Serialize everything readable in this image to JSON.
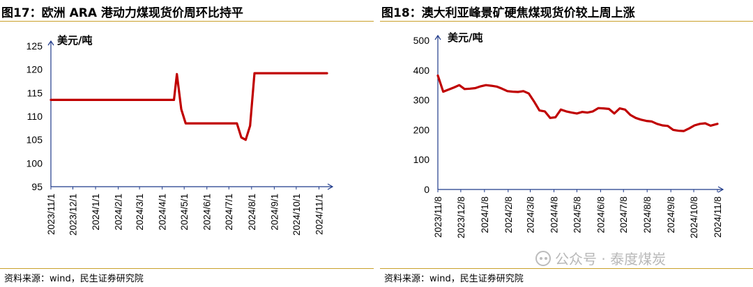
{
  "charts": [
    {
      "title": "图17：欧洲 ARA 港动力煤现货价周环比持平",
      "source": "资料来源：wind，民生证券研究院",
      "chart_data": {
        "type": "line",
        "title": "欧洲 ARA 港动力煤现货价周环比持平",
        "ylabel": "美元/吨",
        "ylim": [
          95,
          125
        ],
        "yticks": [
          95,
          100,
          105,
          110,
          115,
          120,
          125
        ],
        "xlim": [
          "2023-11-01",
          "2024-11-12"
        ],
        "x_tick_labels": [
          "2023/11/1",
          "2023/12/1",
          "2024/1/1",
          "2024/2/1",
          "2024/3/1",
          "2024/4/1",
          "2024/5/1",
          "2024/6/1",
          "2024/7/1",
          "2024/8/1",
          "2024/9/1",
          "2024/10/1",
          "2024/11/1"
        ],
        "x_tick_dates": [
          "2023-11-01",
          "2023-12-01",
          "2024-01-01",
          "2024-02-01",
          "2024-03-01",
          "2024-04-01",
          "2024-05-01",
          "2024-06-01",
          "2024-07-01",
          "2024-08-01",
          "2024-09-01",
          "2024-10-01",
          "2024-11-01"
        ],
        "color": "#c00000",
        "grid": false,
        "series": [
          {
            "x": [
              "2023-11-01",
              "2024-04-17",
              "2024-04-21",
              "2024-04-27",
              "2024-05-03",
              "2024-07-12",
              "2024-07-18",
              "2024-07-24",
              "2024-07-30",
              "2024-08-05",
              "2024-11-12"
            ],
            "y": [
              113.5,
              113.5,
              119,
              111.5,
              108.5,
              108.5,
              105.5,
              105,
              108,
              119.2,
              119.2
            ]
          }
        ]
      }
    },
    {
      "title": "图18：澳大利亚峰景矿硬焦煤现货价较上周上涨",
      "source": "资料来源：wind，民生证券研究院",
      "chart_data": {
        "type": "line",
        "title": "澳大利亚峰景矿硬焦煤现货价较上周上涨",
        "ylabel": "美元/吨",
        "ylim": [
          0,
          500
        ],
        "yticks": [
          0,
          100,
          200,
          300,
          400,
          500
        ],
        "xlim": [
          "2023-11-08",
          "2024-11-08"
        ],
        "x_tick_labels": [
          "2023/11/8",
          "2023/12/8",
          "2024/1/8",
          "2024/2/8",
          "2024/3/8",
          "2024/4/8",
          "2024/5/8",
          "2024/6/8",
          "2024/7/8",
          "2024/8/8",
          "2024/9/8",
          "2024/10/8",
          "2024/11/8"
        ],
        "x_tick_dates": [
          "2023-11-08",
          "2023-12-08",
          "2024-01-08",
          "2024-02-08",
          "2024-03-08",
          "2024-04-08",
          "2024-05-08",
          "2024-06-08",
          "2024-07-08",
          "2024-08-08",
          "2024-09-08",
          "2024-10-08",
          "2024-11-08"
        ],
        "color": "#c00000",
        "grid": false,
        "series": [
          {
            "x": [
              "2023-11-08",
              "2023-11-15",
              "2023-11-22",
              "2023-11-29",
              "2023-12-06",
              "2023-12-13",
              "2023-12-20",
              "2023-12-27",
              "2024-01-03",
              "2024-01-10",
              "2024-01-17",
              "2024-01-24",
              "2024-01-31",
              "2024-02-07",
              "2024-02-14",
              "2024-02-21",
              "2024-02-28",
              "2024-03-06",
              "2024-03-13",
              "2024-03-20",
              "2024-03-27",
              "2024-04-03",
              "2024-04-10",
              "2024-04-17",
              "2024-04-24",
              "2024-05-01",
              "2024-05-08",
              "2024-05-15",
              "2024-05-22",
              "2024-05-29",
              "2024-06-05",
              "2024-06-12",
              "2024-06-19",
              "2024-06-26",
              "2024-07-03",
              "2024-07-10",
              "2024-07-17",
              "2024-07-24",
              "2024-07-31",
              "2024-08-07",
              "2024-08-14",
              "2024-08-21",
              "2024-08-28",
              "2024-09-04",
              "2024-09-11",
              "2024-09-18",
              "2024-09-25",
              "2024-10-02",
              "2024-10-09",
              "2024-10-16",
              "2024-10-23",
              "2024-10-30",
              "2024-11-08"
            ],
            "y": [
              382,
              328,
              335,
              342,
              350,
              337,
              338,
              340,
              346,
              350,
              348,
              345,
              338,
              330,
              328,
              327,
              330,
              322,
              295,
              265,
              262,
              240,
              242,
              268,
              262,
              258,
              255,
              260,
              258,
              262,
              273,
              272,
              270,
              255,
              272,
              268,
              250,
              240,
              234,
              230,
              228,
              220,
              215,
              213,
              200,
              197,
              196,
              205,
              215,
              220,
              222,
              214,
              220
            ]
          }
        ]
      }
    }
  ],
  "watermark": "公众号 · 泰度煤炭"
}
